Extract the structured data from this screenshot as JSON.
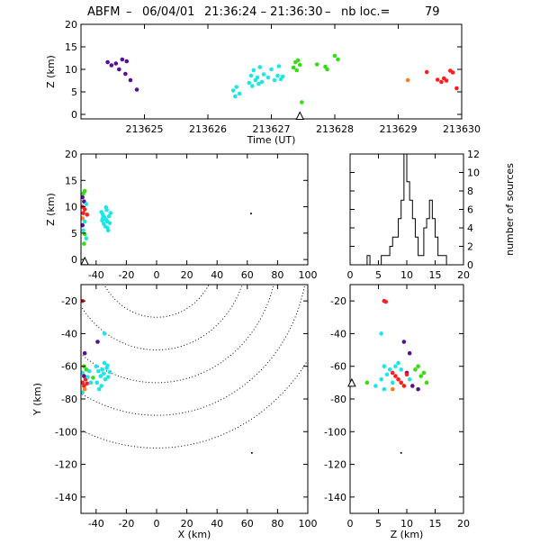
{
  "title": {
    "prefix": "ABFM",
    "date": "06/04/01",
    "time_range": "21:36:24 – 21:36:30",
    "loc_label": "nb loc.=",
    "loc_count": "79"
  },
  "chart_data": [
    {
      "id": "time-height",
      "type": "scatter",
      "xlabel": "Time (UT)",
      "ylabel": "Z (km)",
      "xlim": [
        213624.0,
        213630.0
      ],
      "ylim": [
        -1,
        20
      ],
      "xticks": [
        213625,
        213626,
        213627,
        213628,
        213629,
        213630
      ],
      "yticks": [
        0,
        5,
        10,
        15,
        20
      ],
      "marker": {
        "type": "triangle",
        "x": 213627.45,
        "y": -0.3
      },
      "points": [
        {
          "x": 213624.42,
          "y": 11.6,
          "c": "#5a0e96"
        },
        {
          "x": 213624.48,
          "y": 10.9,
          "c": "#5a0e96"
        },
        {
          "x": 213624.55,
          "y": 11.3,
          "c": "#5a0e96"
        },
        {
          "x": 213624.6,
          "y": 10.0,
          "c": "#5a0e96"
        },
        {
          "x": 213624.65,
          "y": 12.2,
          "c": "#5a0e96"
        },
        {
          "x": 213624.7,
          "y": 9.0,
          "c": "#5a0e96"
        },
        {
          "x": 213624.72,
          "y": 11.8,
          "c": "#5a0e96"
        },
        {
          "x": 213624.78,
          "y": 7.6,
          "c": "#5a0e96"
        },
        {
          "x": 213624.88,
          "y": 5.5,
          "c": "#5a0e96"
        },
        {
          "x": 213626.4,
          "y": 5.3,
          "c": "#1ee6e6"
        },
        {
          "x": 213626.43,
          "y": 4.0,
          "c": "#1ee6e6"
        },
        {
          "x": 213626.45,
          "y": 6.1,
          "c": "#1ee6e6"
        },
        {
          "x": 213626.5,
          "y": 4.6,
          "c": "#1ee6e6"
        },
        {
          "x": 213626.65,
          "y": 7.0,
          "c": "#1ee6e6"
        },
        {
          "x": 213626.68,
          "y": 8.6,
          "c": "#1ee6e6"
        },
        {
          "x": 213626.7,
          "y": 6.3,
          "c": "#1ee6e6"
        },
        {
          "x": 213626.72,
          "y": 9.8,
          "c": "#1ee6e6"
        },
        {
          "x": 213626.75,
          "y": 7.6,
          "c": "#1ee6e6"
        },
        {
          "x": 213626.78,
          "y": 8.2,
          "c": "#1ee6e6"
        },
        {
          "x": 213626.8,
          "y": 6.8,
          "c": "#1ee6e6"
        },
        {
          "x": 213626.82,
          "y": 10.5,
          "c": "#1ee6e6"
        },
        {
          "x": 213626.85,
          "y": 7.2,
          "c": "#1ee6e6"
        },
        {
          "x": 213626.88,
          "y": 8.9,
          "c": "#1ee6e6"
        },
        {
          "x": 213626.95,
          "y": 8.2,
          "c": "#1ee6e6"
        },
        {
          "x": 213627.0,
          "y": 10.0,
          "c": "#1ee6e6"
        },
        {
          "x": 213627.05,
          "y": 7.6,
          "c": "#1ee6e6"
        },
        {
          "x": 213627.1,
          "y": 8.6,
          "c": "#1ee6e6"
        },
        {
          "x": 213627.12,
          "y": 10.7,
          "c": "#1ee6e6"
        },
        {
          "x": 213627.15,
          "y": 7.8,
          "c": "#1ee6e6"
        },
        {
          "x": 213627.18,
          "y": 8.4,
          "c": "#1ee6e6"
        },
        {
          "x": 213627.35,
          "y": 10.4,
          "c": "#37dc14"
        },
        {
          "x": 213627.38,
          "y": 11.6,
          "c": "#37dc14"
        },
        {
          "x": 213627.4,
          "y": 9.8,
          "c": "#37dc14"
        },
        {
          "x": 213627.42,
          "y": 12.0,
          "c": "#37dc14"
        },
        {
          "x": 213627.45,
          "y": 11.0,
          "c": "#37dc14"
        },
        {
          "x": 213627.48,
          "y": 2.7,
          "c": "#37dc14"
        },
        {
          "x": 213627.72,
          "y": 11.1,
          "c": "#37dc14"
        },
        {
          "x": 213627.85,
          "y": 10.6,
          "c": "#37dc14"
        },
        {
          "x": 213627.88,
          "y": 10.0,
          "c": "#37dc14"
        },
        {
          "x": 213628.0,
          "y": 13.0,
          "c": "#37dc14"
        },
        {
          "x": 213628.05,
          "y": 12.2,
          "c": "#37dc14"
        },
        {
          "x": 213629.15,
          "y": 7.6,
          "c": "#ff7f1e"
        },
        {
          "x": 213629.45,
          "y": 9.4,
          "c": "#ff1e1e"
        },
        {
          "x": 213629.62,
          "y": 7.7,
          "c": "#ff1e1e"
        },
        {
          "x": 213629.68,
          "y": 7.2,
          "c": "#ff1e1e"
        },
        {
          "x": 213629.72,
          "y": 8.0,
          "c": "#ff1e1e"
        },
        {
          "x": 213629.76,
          "y": 7.5,
          "c": "#ff1e1e"
        },
        {
          "x": 213629.82,
          "y": 9.7,
          "c": "#ff1e1e"
        },
        {
          "x": 213629.86,
          "y": 9.3,
          "c": "#ff1e1e"
        },
        {
          "x": 213629.92,
          "y": 5.8,
          "c": "#ff1e1e"
        }
      ]
    },
    {
      "id": "x-height",
      "type": "scatter",
      "ylabel": "Z (km)",
      "xlim": [
        -50,
        100
      ],
      "ylim": [
        -1,
        20
      ],
      "xticks": [
        -40,
        -20,
        0,
        20,
        40,
        60,
        80,
        100
      ],
      "yticks": [
        0,
        5,
        10,
        15,
        20
      ],
      "marker": {
        "type": "triangle",
        "x": -47.5,
        "y": -0.3
      },
      "points": [
        {
          "x": -48.5,
          "y": 12.5,
          "c": "#37dc14"
        },
        {
          "x": -47.5,
          "y": 13.0,
          "c": "#37dc14"
        },
        {
          "x": -49.0,
          "y": 11.8,
          "c": "#5a0e96"
        },
        {
          "x": -48.0,
          "y": 11.0,
          "c": "#5a0e96"
        },
        {
          "x": -46.5,
          "y": 10.5,
          "c": "#1ee6e6"
        },
        {
          "x": -49.0,
          "y": 10.0,
          "c": "#ff1e1e"
        },
        {
          "x": -47.5,
          "y": 9.5,
          "c": "#ff1e1e"
        },
        {
          "x": -48.5,
          "y": 8.8,
          "c": "#ff1e1e"
        },
        {
          "x": -46.0,
          "y": 8.5,
          "c": "#ff1e1e"
        },
        {
          "x": -49.0,
          "y": 7.8,
          "c": "#ff7f1e"
        },
        {
          "x": -47.5,
          "y": 7.2,
          "c": "#1ee6e6"
        },
        {
          "x": -49.0,
          "y": 6.5,
          "c": "#5a0e96"
        },
        {
          "x": -48.5,
          "y": 5.5,
          "c": "#1ee6e6"
        },
        {
          "x": -47.5,
          "y": 4.8,
          "c": "#37dc14"
        },
        {
          "x": -46.5,
          "y": 4.0,
          "c": "#1ee6e6"
        },
        {
          "x": -48.0,
          "y": 3.0,
          "c": "#37dc14"
        },
        {
          "x": -36.5,
          "y": 9.0,
          "c": "#1ee6e6"
        },
        {
          "x": -35.5,
          "y": 8.5,
          "c": "#1ee6e6"
        },
        {
          "x": -34.5,
          "y": 8.0,
          "c": "#1ee6e6"
        },
        {
          "x": -33.5,
          "y": 7.6,
          "c": "#1ee6e6"
        },
        {
          "x": -32.5,
          "y": 7.2,
          "c": "#1ee6e6"
        },
        {
          "x": -31.5,
          "y": 8.2,
          "c": "#1ee6e6"
        },
        {
          "x": -35.0,
          "y": 6.8,
          "c": "#1ee6e6"
        },
        {
          "x": -33.0,
          "y": 9.4,
          "c": "#1ee6e6"
        },
        {
          "x": -34.0,
          "y": 6.3,
          "c": "#1ee6e6"
        },
        {
          "x": -32.0,
          "y": 5.5,
          "c": "#1ee6e6"
        },
        {
          "x": -36.0,
          "y": 7.4,
          "c": "#1ee6e6"
        },
        {
          "x": -31.0,
          "y": 6.9,
          "c": "#1ee6e6"
        },
        {
          "x": -30.5,
          "y": 8.8,
          "c": "#1ee6e6"
        },
        {
          "x": -33.5,
          "y": 9.9,
          "c": "#1ee6e6"
        },
        {
          "x": -35.5,
          "y": 7.9,
          "c": "#1ee6e6"
        },
        {
          "x": -32.5,
          "y": 6.0,
          "c": "#1ee6e6"
        },
        {
          "x": 62.5,
          "y": 8.7,
          "c": "#000000"
        }
      ]
    },
    {
      "id": "height-histogram",
      "type": "histogram",
      "ylabel": "number of sources",
      "xlim": [
        0,
        20
      ],
      "ylim": [
        0,
        12
      ],
      "xticks": [
        0,
        5,
        10,
        15,
        20
      ],
      "yticks": [
        0,
        2,
        4,
        6,
        8,
        10,
        12
      ],
      "bin_width": 0.5,
      "bin_start": 0,
      "counts": [
        0,
        0,
        0,
        0,
        0,
        0,
        1,
        0,
        0,
        0,
        0,
        1,
        1,
        1,
        2,
        3,
        3,
        5,
        7,
        12,
        9,
        7,
        5,
        3,
        1,
        1,
        4,
        5,
        7,
        5,
        3,
        1,
        1,
        1,
        0,
        0,
        0,
        0,
        0,
        0
      ]
    },
    {
      "id": "plan-view",
      "type": "scatter",
      "xlabel": "X (km)",
      "ylabel": "Y (km)",
      "xlim": [
        -50,
        100
      ],
      "ylim": [
        -150,
        -10
      ],
      "xticks": [
        -40,
        -20,
        0,
        20,
        40,
        60,
        80,
        100
      ],
      "yticks": [
        -20,
        -40,
        -60,
        -80,
        -100,
        -120,
        -140
      ],
      "range_rings_km": [
        20,
        40,
        60,
        80,
        100,
        120
      ],
      "ring_center": [
        0,
        10
      ],
      "points": [
        {
          "x": -49.0,
          "y": -20.0,
          "c": "#ff1e1e"
        },
        {
          "x": -34.5,
          "y": -40.0,
          "c": "#1ee6e6"
        },
        {
          "x": -39.0,
          "y": -45.0,
          "c": "#5a0e96"
        },
        {
          "x": -47.5,
          "y": -52.0,
          "c": "#5a0e96"
        },
        {
          "x": -48.0,
          "y": -60.0,
          "c": "#37dc14"
        },
        {
          "x": -46.5,
          "y": -62.0,
          "c": "#37dc14"
        },
        {
          "x": -49.0,
          "y": -64.0,
          "c": "#1ee6e6"
        },
        {
          "x": -48.0,
          "y": -66.0,
          "c": "#5a0e96"
        },
        {
          "x": -47.0,
          "y": -68.0,
          "c": "#ff1e1e"
        },
        {
          "x": -49.0,
          "y": -70.0,
          "c": "#ff1e1e"
        },
        {
          "x": -46.0,
          "y": -70.5,
          "c": "#ff1e1e"
        },
        {
          "x": -48.0,
          "y": -72.0,
          "c": "#ff1e1e"
        },
        {
          "x": -47.5,
          "y": -74.0,
          "c": "#ff7f1e"
        },
        {
          "x": -49.0,
          "y": -76.0,
          "c": "#1ee6e6"
        },
        {
          "x": -45.5,
          "y": -66.5,
          "c": "#1ee6e6"
        },
        {
          "x": -44.5,
          "y": -63.0,
          "c": "#1ee6e6"
        },
        {
          "x": -43.5,
          "y": -70.0,
          "c": "#1ee6e6"
        },
        {
          "x": -42.0,
          "y": -67.0,
          "c": "#37dc14"
        },
        {
          "x": -40.0,
          "y": -60.0,
          "c": "#1ee6e6"
        },
        {
          "x": -38.5,
          "y": -63.0,
          "c": "#1ee6e6"
        },
        {
          "x": -37.0,
          "y": -66.0,
          "c": "#1ee6e6"
        },
        {
          "x": -36.0,
          "y": -62.0,
          "c": "#1ee6e6"
        },
        {
          "x": -35.0,
          "y": -64.5,
          "c": "#1ee6e6"
        },
        {
          "x": -34.0,
          "y": -68.0,
          "c": "#1ee6e6"
        },
        {
          "x": -33.0,
          "y": -61.0,
          "c": "#1ee6e6"
        },
        {
          "x": -32.0,
          "y": -66.5,
          "c": "#1ee6e6"
        },
        {
          "x": -31.0,
          "y": -63.5,
          "c": "#1ee6e6"
        },
        {
          "x": -39.5,
          "y": -70.0,
          "c": "#1ee6e6"
        },
        {
          "x": -36.5,
          "y": -72.0,
          "c": "#1ee6e6"
        },
        {
          "x": -34.5,
          "y": -58.0,
          "c": "#1ee6e6"
        },
        {
          "x": -38.0,
          "y": -74.0,
          "c": "#1ee6e6"
        },
        {
          "x": -32.5,
          "y": -59.5,
          "c": "#1ee6e6"
        },
        {
          "x": 63.0,
          "y": -113.0,
          "c": "#000000"
        }
      ]
    },
    {
      "id": "height-y",
      "type": "scatter",
      "xlabel": "Z (km)",
      "xlim": [
        0,
        20
      ],
      "ylim": [
        -150,
        -10
      ],
      "xticks": [
        0,
        5,
        10,
        15,
        20
      ],
      "yticks": [
        -20,
        -40,
        -60,
        -80,
        -100,
        -120,
        -140
      ],
      "marker": {
        "type": "triangle",
        "x": 0.3,
        "y": -70
      },
      "points": [
        {
          "x": 6.0,
          "y": -20.0,
          "c": "#ff1e1e"
        },
        {
          "x": 6.3,
          "y": -20.5,
          "c": "#ff1e1e"
        },
        {
          "x": 5.5,
          "y": -40.0,
          "c": "#1ee6e6"
        },
        {
          "x": 9.5,
          "y": -45.0,
          "c": "#5a0e96"
        },
        {
          "x": 10.5,
          "y": -52.0,
          "c": "#5a0e96"
        },
        {
          "x": 12.0,
          "y": -60.0,
          "c": "#37dc14"
        },
        {
          "x": 11.5,
          "y": -62.0,
          "c": "#37dc14"
        },
        {
          "x": 13.0,
          "y": -64.0,
          "c": "#37dc14"
        },
        {
          "x": 12.5,
          "y": -66.0,
          "c": "#37dc14"
        },
        {
          "x": 13.5,
          "y": -70.0,
          "c": "#37dc14"
        },
        {
          "x": 10.0,
          "y": -64.0,
          "c": "#5a0e96"
        },
        {
          "x": 11.0,
          "y": -72.0,
          "c": "#5a0e96"
        },
        {
          "x": 12.0,
          "y": -74.0,
          "c": "#5a0e96"
        },
        {
          "x": 3.0,
          "y": -70.0,
          "c": "#37dc14"
        },
        {
          "x": 7.5,
          "y": -64.0,
          "c": "#ff1e1e"
        },
        {
          "x": 8.0,
          "y": -66.0,
          "c": "#ff1e1e"
        },
        {
          "x": 8.5,
          "y": -68.0,
          "c": "#ff1e1e"
        },
        {
          "x": 9.0,
          "y": -70.0,
          "c": "#ff1e1e"
        },
        {
          "x": 9.5,
          "y": -72.0,
          "c": "#ff1e1e"
        },
        {
          "x": 10.0,
          "y": -65.0,
          "c": "#ff1e1e"
        },
        {
          "x": 7.5,
          "y": -74.0,
          "c": "#ff7f1e"
        },
        {
          "x": 6.0,
          "y": -60.0,
          "c": "#1ee6e6"
        },
        {
          "x": 7.0,
          "y": -62.0,
          "c": "#1ee6e6"
        },
        {
          "x": 8.0,
          "y": -60.0,
          "c": "#1ee6e6"
        },
        {
          "x": 6.5,
          "y": -65.0,
          "c": "#1ee6e6"
        },
        {
          "x": 5.5,
          "y": -68.0,
          "c": "#1ee6e6"
        },
        {
          "x": 9.0,
          "y": -62.0,
          "c": "#1ee6e6"
        },
        {
          "x": 7.5,
          "y": -70.0,
          "c": "#1ee6e6"
        },
        {
          "x": 4.5,
          "y": -72.0,
          "c": "#1ee6e6"
        },
        {
          "x": 8.5,
          "y": -58.0,
          "c": "#1ee6e6"
        },
        {
          "x": 6.0,
          "y": -74.0,
          "c": "#1ee6e6"
        },
        {
          "x": 10.5,
          "y": -68.0,
          "c": "#1ee6e6"
        },
        {
          "x": 9.0,
          "y": -113.0,
          "c": "#000000"
        }
      ]
    }
  ]
}
